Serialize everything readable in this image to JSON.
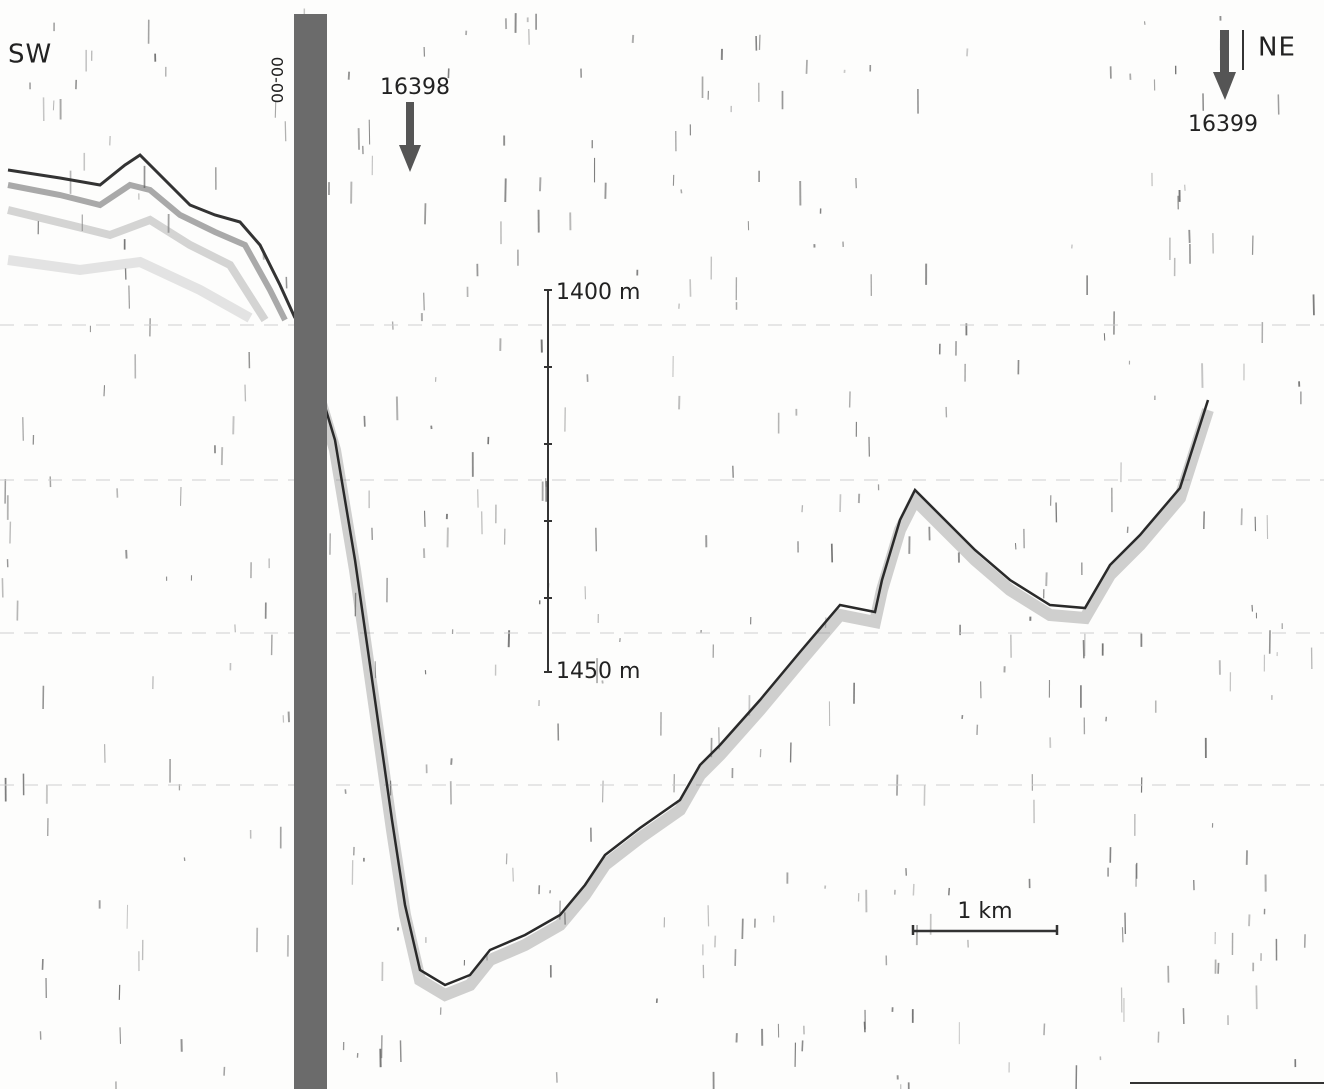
{
  "directions": {
    "left": "SW",
    "right": "NE"
  },
  "stations": [
    "16398",
    "16399"
  ],
  "depth_scale": {
    "top": "1400 m",
    "bottom": "1450 m"
  },
  "distance_scale": "1 km",
  "record_mark": "00-00"
}
